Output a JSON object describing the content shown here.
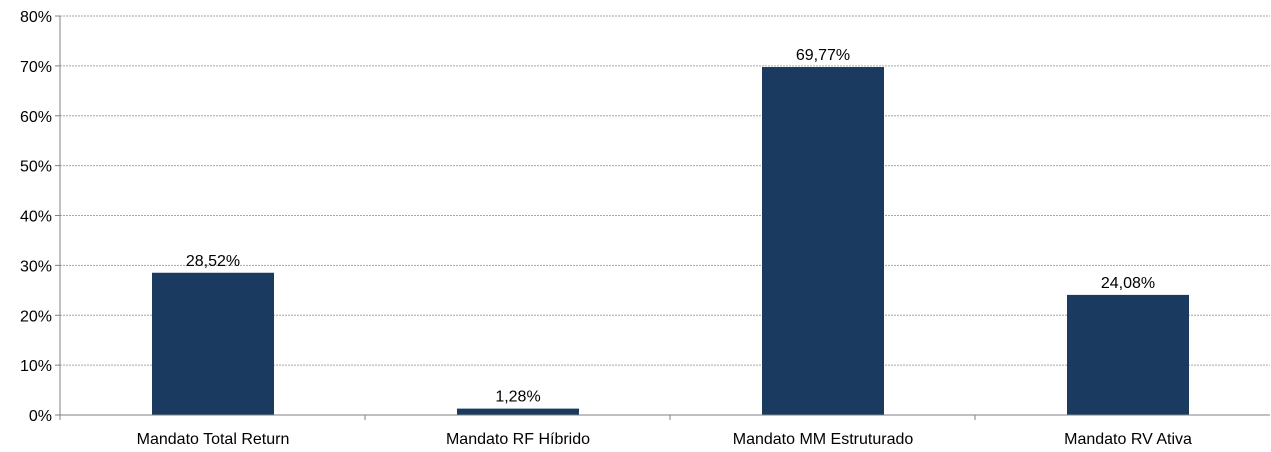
{
  "chart_data": {
    "type": "bar",
    "title": "",
    "xlabel": "",
    "ylabel": "",
    "categories": [
      "Mandato Total Return",
      "Mandato RF Híbrido",
      "Mandato MM Estruturado",
      "Mandato RV Ativa"
    ],
    "values": [
      28.52,
      1.28,
      69.77,
      24.08
    ],
    "data_labels": [
      "28,52%",
      "1,28%",
      "69,77%",
      "24,08%"
    ],
    "ylim": [
      0,
      80
    ],
    "yticks": [
      0,
      10,
      20,
      30,
      40,
      50,
      60,
      70,
      80
    ],
    "ytick_labels": [
      "0%",
      "10%",
      "20%",
      "30%",
      "40%",
      "50%",
      "60%",
      "70%",
      "80%"
    ],
    "grid": true,
    "legend": "none",
    "bar_color": "#1a3a5f"
  }
}
